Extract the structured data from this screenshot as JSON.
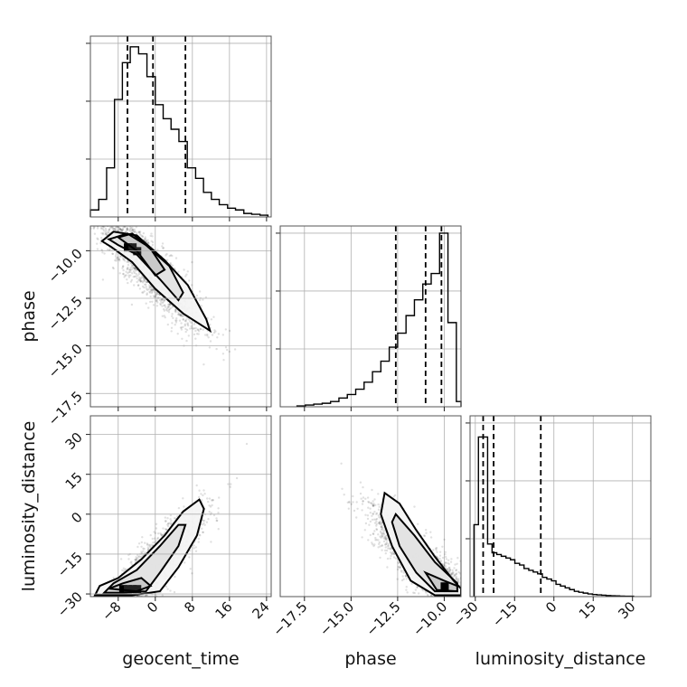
{
  "chart_data": {
    "type": "corner",
    "parameters": [
      "geocent_time",
      "phase",
      "luminosity_distance"
    ],
    "grid": true,
    "quantiles": {
      "geocent_time": [
        -6,
        -0.5,
        6.5
      ],
      "phase": [
        -12.6,
        -11.0,
        -10.15
      ],
      "luminosity_distance": [
        -27,
        -23,
        -5
      ]
    },
    "histograms": [
      {
        "param": "geocent_time",
        "xlim": [
          -14,
          25
        ],
        "edges": [
          -14.0,
          -12.2,
          -10.5,
          -8.8,
          -7.1,
          -5.4,
          -3.6,
          -1.8,
          0.0,
          1.7,
          3.4,
          5.1,
          6.9,
          8.7,
          10.4,
          12.1,
          13.8,
          15.6,
          17.3,
          19.1,
          20.8,
          22.6,
          24.3
        ],
        "counts": [
          0.04,
          0.1,
          0.28,
          0.67,
          0.88,
          0.97,
          0.93,
          0.8,
          0.64,
          0.56,
          0.5,
          0.43,
          0.28,
          0.22,
          0.14,
          0.1,
          0.07,
          0.05,
          0.04,
          0.02,
          0.015,
          0.01
        ]
      },
      {
        "param": "phase",
        "xlim": [
          -18.8,
          -9.1
        ],
        "edges": [
          -17.9,
          -17.45,
          -17.0,
          -16.55,
          -16.1,
          -15.65,
          -15.2,
          -14.75,
          -14.3,
          -13.85,
          -13.4,
          -12.95,
          -12.5,
          -12.05,
          -11.6,
          -11.15,
          -10.7,
          -10.25,
          -9.8,
          -9.35,
          -9.1
        ],
        "counts": [
          0.005,
          0.01,
          0.015,
          0.02,
          0.03,
          0.05,
          0.07,
          0.1,
          0.14,
          0.2,
          0.26,
          0.34,
          0.42,
          0.52,
          0.61,
          0.7,
          0.76,
          0.99,
          0.48,
          0.03
        ]
      },
      {
        "param": "luminosity_distance",
        "xlim": [
          -32,
          37
        ],
        "edges": [
          -30.5,
          -28.8,
          -27.0,
          -25.3,
          -23.6,
          -21.8,
          -20.1,
          -18.3,
          -16.6,
          -14.9,
          -13.1,
          -11.4,
          -9.6,
          -7.9,
          -6.2,
          -4.4,
          -2.7,
          -0.9,
          0.8,
          2.5,
          4.3,
          6.0,
          7.8,
          9.5,
          11.2,
          13.0,
          14.7,
          16.4,
          18.2,
          19.9,
          21.7,
          23.4,
          25.1,
          26.9,
          28.6,
          30.4
        ],
        "counts": [
          0.41,
          0.91,
          0.91,
          0.3,
          0.25,
          0.24,
          0.23,
          0.22,
          0.21,
          0.19,
          0.18,
          0.16,
          0.15,
          0.14,
          0.13,
          0.11,
          0.1,
          0.09,
          0.07,
          0.06,
          0.05,
          0.04,
          0.03,
          0.025,
          0.02,
          0.015,
          0.012,
          0.01,
          0.008,
          0.006,
          0.005,
          0.004,
          0.003,
          0.002,
          0.002
        ]
      }
    ],
    "scatter_panels": [
      {
        "x": "geocent_time",
        "y": "phase",
        "xlim": [
          -14,
          25
        ],
        "ylim": [
          -18.2,
          -8.7
        ],
        "relation": {
          "slope": -0.25,
          "intercept": -11.2,
          "spread": 0.75
        },
        "x_center": -2,
        "x_spread": 6,
        "contours": [
          [
            [
              -11.5,
              -9.5
            ],
            [
              -9,
              -9.0
            ],
            [
              -4,
              -9.2
            ],
            [
              2,
              -10.5
            ],
            [
              7,
              -11.8
            ],
            [
              11,
              -13.6
            ],
            [
              11.8,
              -14.2
            ],
            [
              6,
              -13.3
            ],
            [
              0,
              -12.0
            ],
            [
              -5,
              -10.6
            ],
            [
              -9.5,
              -9.8
            ],
            [
              -11.5,
              -9.5
            ]
          ],
          [
            [
              -10,
              -9.4
            ],
            [
              -6,
              -9.1
            ],
            [
              -2,
              -9.7
            ],
            [
              3,
              -10.8
            ],
            [
              6,
              -12.2
            ],
            [
              5,
              -12.6
            ],
            [
              1,
              -11.5
            ],
            [
              -4,
              -10.2
            ],
            [
              -8,
              -9.7
            ],
            [
              -10,
              -9.4
            ]
          ],
          [
            [
              -8,
              -9.3
            ],
            [
              -5,
              -9.1
            ],
            [
              -1,
              -9.9
            ],
            [
              2,
              -11.0
            ],
            [
              0,
              -11.3
            ],
            [
              -4,
              -10.0
            ],
            [
              -8,
              -9.3
            ]
          ]
        ],
        "dense_cells": [
          [
            -6,
            -9.8
          ],
          [
            -5,
            -9.8
          ],
          [
            -4,
            -10.0
          ]
        ]
      },
      {
        "x": "geocent_time",
        "y": "luminosity_distance",
        "xlim": [
          -14,
          25
        ],
        "ylim": [
          -31,
          37
        ],
        "relation": {
          "slope": 1.75,
          "intercept": -19,
          "spread": 5
        },
        "x_center": -2,
        "x_spread": 6,
        "contours": [
          [
            [
              -13,
              -30.5
            ],
            [
              -12,
              -27
            ],
            [
              -8,
              -24
            ],
            [
              -3,
              -17
            ],
            [
              2,
              -8
            ],
            [
              6,
              1
            ],
            [
              9.5,
              5.5
            ],
            [
              10.5,
              2
            ],
            [
              9,
              -8
            ],
            [
              5,
              -20
            ],
            [
              1,
              -29
            ],
            [
              -5,
              -30.5
            ],
            [
              -13,
              -30.5
            ]
          ],
          [
            [
              -11,
              -29.5
            ],
            [
              -9,
              -26
            ],
            [
              -4,
              -21
            ],
            [
              1,
              -12
            ],
            [
              5,
              -4
            ],
            [
              6.5,
              -4
            ],
            [
              5,
              -12
            ],
            [
              1,
              -22
            ],
            [
              -2,
              -29
            ],
            [
              -7,
              -29.5
            ],
            [
              -11,
              -29.5
            ]
          ],
          [
            [
              -10,
              -28
            ],
            [
              -7,
              -26
            ],
            [
              -3,
              -24
            ],
            [
              -1,
              -27
            ],
            [
              -4,
              -29
            ],
            [
              -10,
              -28
            ]
          ]
        ],
        "dense_cells": [
          [
            -7,
            -28
          ],
          [
            -6,
            -28
          ],
          [
            -5,
            -28
          ],
          [
            -4,
            -28
          ]
        ]
      },
      {
        "x": "phase",
        "y": "luminosity_distance",
        "xlim": [
          -18.8,
          -9.1
        ],
        "ylim": [
          -31,
          37
        ],
        "relation": {
          "slope": -6.2,
          "intercept": -88,
          "spread": 5
        },
        "x_center": -11,
        "x_spread": 1.4,
        "contours": [
          [
            [
              -13.2,
              8
            ],
            [
              -12.4,
              4
            ],
            [
              -11.5,
              -6
            ],
            [
              -10.5,
              -16
            ],
            [
              -9.5,
              -25
            ],
            [
              -9.1,
              -28
            ],
            [
              -9.1,
              -30.5
            ],
            [
              -10.5,
              -30.5
            ],
            [
              -11.8,
              -25
            ],
            [
              -12.8,
              -12
            ],
            [
              -13.4,
              0
            ],
            [
              -13.2,
              8
            ]
          ],
          [
            [
              -12.6,
              0
            ],
            [
              -11.6,
              -8
            ],
            [
              -10.5,
              -18
            ],
            [
              -9.3,
              -26
            ],
            [
              -9.3,
              -29
            ],
            [
              -10.5,
              -29
            ],
            [
              -11.5,
              -22
            ],
            [
              -12.4,
              -12
            ],
            [
              -12.8,
              -3
            ],
            [
              -12.6,
              0
            ]
          ],
          [
            [
              -11.0,
              -22
            ],
            [
              -10.0,
              -25
            ],
            [
              -9.3,
              -27
            ],
            [
              -9.3,
              -29
            ],
            [
              -10.4,
              -28.5
            ],
            [
              -11.0,
              -22
            ]
          ]
        ],
        "dense_cells": [
          [
            -10.0,
            -27
          ]
        ]
      }
    ],
    "xticks": {
      "geocent_time": [
        -8,
        0,
        8,
        16,
        24
      ],
      "phase": [
        -17.5,
        -15.0,
        -12.5,
        -10.0
      ],
      "luminosity_distance": [
        -30,
        -15,
        0,
        15,
        30
      ]
    },
    "xticklabels": {
      "geocent_time": [
        "−8",
        "0",
        "8",
        "16",
        "24"
      ],
      "phase": [
        "−17.5",
        "−15.0",
        "−12.5",
        "−10.0"
      ],
      "luminosity_distance": [
        "−30",
        "−15",
        "0",
        "15",
        "30"
      ]
    },
    "yticks": {
      "phase": [
        -10.0,
        -12.5,
        -15.0,
        -17.5
      ],
      "luminosity_distance": [
        30,
        15,
        0,
        -15,
        -30
      ]
    },
    "yticklabels": {
      "phase": [
        "−10.0",
        "−12.5",
        "−15.0",
        "−17.5"
      ],
      "luminosity_distance": [
        "30",
        "15",
        "0",
        "−15",
        "−30"
      ]
    }
  }
}
